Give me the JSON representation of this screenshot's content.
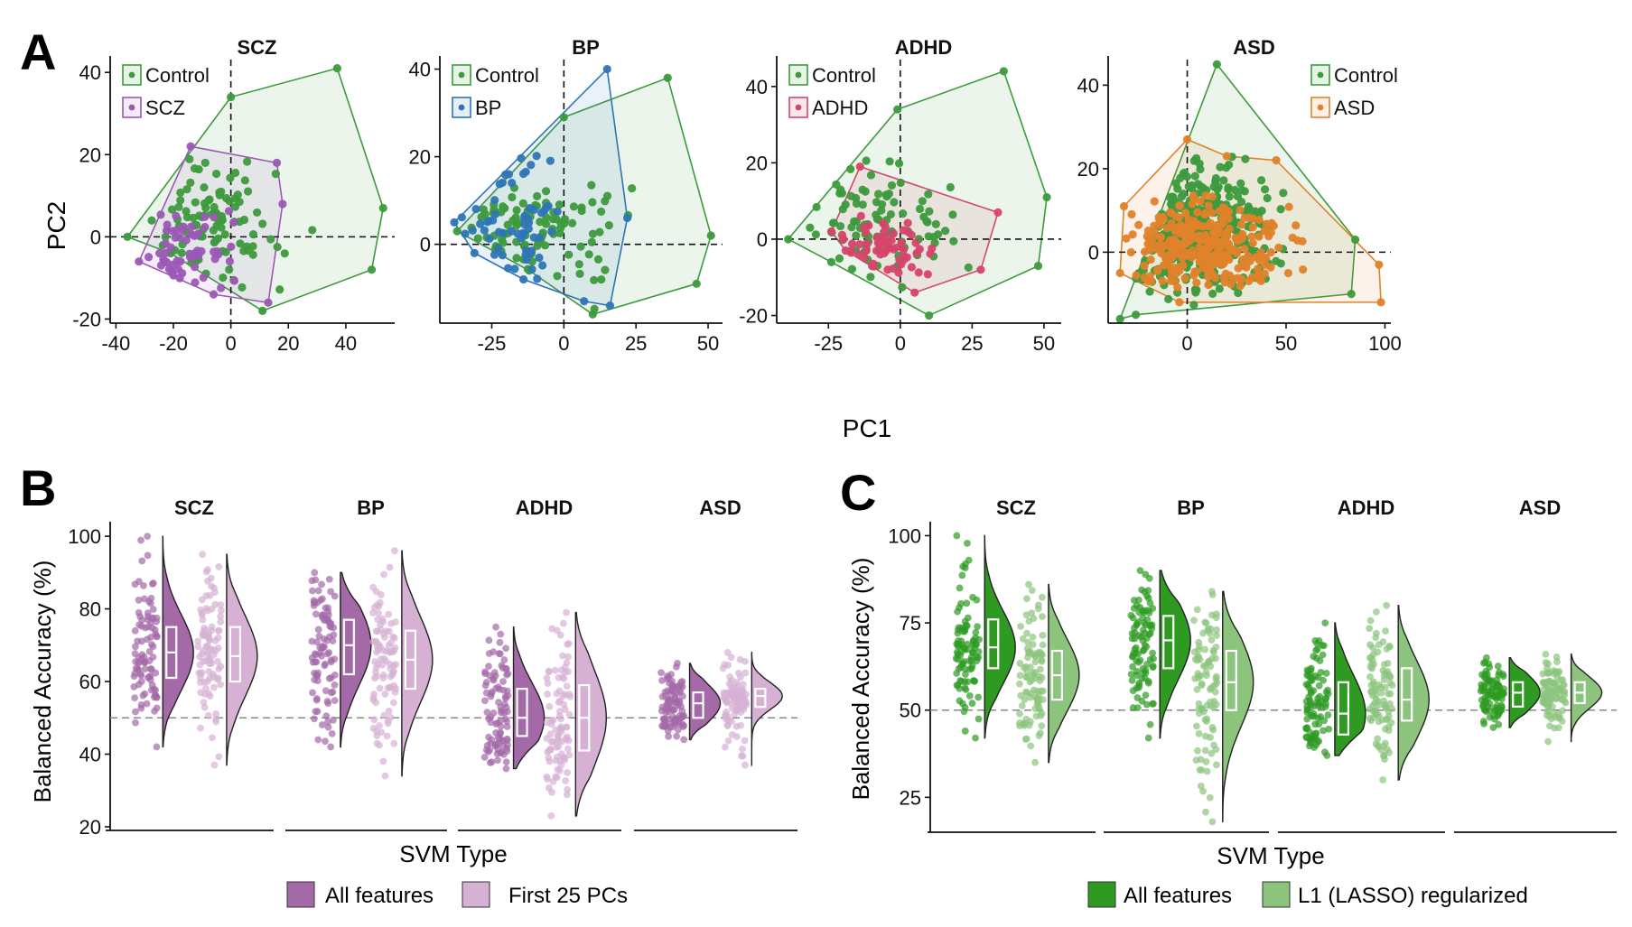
{
  "panel_labels": {
    "a": "A",
    "b": "B",
    "c": "C"
  },
  "colors": {
    "control": "#3d9a3d",
    "scz": "#9b59b6",
    "bp": "#2e75b6",
    "adhd": "#d6456a",
    "asd": "#e0822a",
    "b_all": "#a46aa8",
    "b_pc": "#d6b1d4",
    "c_all": "#2e9a22",
    "c_l1": "#8cc47e"
  },
  "panel_a": {
    "xlabel": "PC1",
    "ylabel": "PC2",
    "legend_control": "Control"
  },
  "panel_b": {
    "ylabel": "Balanced Accuracy (%)",
    "xlabel": "SVM Type",
    "legend": [
      "All features",
      "First 25 PCs"
    ]
  },
  "panel_c": {
    "ylabel": "Balanced Accuracy (%)",
    "xlabel": "SVM Type",
    "legend": [
      "All features",
      "L1 (LASSO) regularized"
    ]
  },
  "chart_data": [
    {
      "type": "scatter",
      "panel": "A",
      "title": "SCZ",
      "xlabel": "PC1",
      "ylabel": "PC2",
      "xlim": [
        -42,
        57
      ],
      "ylim": [
        -21,
        44
      ],
      "xticks": [
        -40,
        -20,
        0,
        20,
        40
      ],
      "yticks": [
        -20,
        0,
        20,
        40
      ],
      "reference_lines": {
        "x": 0,
        "y": 0
      },
      "legend": [
        "Control",
        "SCZ"
      ],
      "legend_position": "top-left",
      "series": [
        {
          "name": "Control",
          "hull": [
            [
              -36,
              0
            ],
            [
              0,
              34
            ],
            [
              37,
              41
            ],
            [
              53,
              7
            ],
            [
              49,
              -8
            ],
            [
              11,
              -18
            ],
            [
              -21,
              -4
            ]
          ]
        },
        {
          "name": "SCZ",
          "hull": [
            [
              -32,
              -6
            ],
            [
              -14,
              22
            ],
            [
              16,
              18
            ],
            [
              18,
              8
            ],
            [
              13,
              -16
            ],
            [
              -6,
              -14
            ]
          ]
        }
      ]
    },
    {
      "type": "scatter",
      "panel": "A",
      "title": "BP",
      "xlabel": "PC1",
      "ylabel": "PC2",
      "xlim": [
        -43,
        55
      ],
      "ylim": [
        -18,
        43
      ],
      "xticks": [
        -25,
        0,
        25,
        50
      ],
      "yticks": [
        0,
        20,
        40
      ],
      "reference_lines": {
        "x": 0,
        "y": 0
      },
      "legend": [
        "Control",
        "BP"
      ],
      "legend_position": "top-left",
      "series": [
        {
          "name": "Control",
          "hull": [
            [
              -37,
              3
            ],
            [
              0,
              29
            ],
            [
              36,
              38
            ],
            [
              51,
              2
            ],
            [
              46,
              -9
            ],
            [
              10,
              -16
            ],
            [
              -12,
              -6
            ]
          ]
        },
        {
          "name": "BP",
          "hull": [
            [
              -38,
              5
            ],
            [
              15,
              40
            ],
            [
              22,
              6
            ],
            [
              16,
              -14
            ],
            [
              7,
              -13
            ],
            [
              -14,
              -8
            ],
            [
              -31,
              -2
            ]
          ]
        }
      ]
    },
    {
      "type": "scatter",
      "panel": "A",
      "title": "ADHD",
      "xlabel": "PC1",
      "ylabel": "PC2",
      "xlim": [
        -43,
        56
      ],
      "ylim": [
        -22,
        48
      ],
      "xticks": [
        -25,
        0,
        25,
        50
      ],
      "yticks": [
        -20,
        0,
        20,
        40
      ],
      "reference_lines": {
        "x": 0,
        "y": 0
      },
      "legend": [
        "Control",
        "ADHD"
      ],
      "legend_position": "top-left",
      "series": [
        {
          "name": "Control",
          "hull": [
            [
              -39,
              0
            ],
            [
              -1,
              34
            ],
            [
              36,
              44
            ],
            [
              51,
              11
            ],
            [
              48,
              -7
            ],
            [
              10,
              -20
            ],
            [
              -24,
              -6
            ]
          ]
        },
        {
          "name": "ADHD",
          "hull": [
            [
              -24,
              2
            ],
            [
              -14,
              19
            ],
            [
              34,
              7
            ],
            [
              28,
              -8
            ],
            [
              5,
              -14
            ],
            [
              -19,
              -3
            ]
          ]
        }
      ]
    },
    {
      "type": "scatter",
      "panel": "A",
      "title": "ASD",
      "xlabel": "PC1",
      "ylabel": "PC2",
      "xlim": [
        -40,
        103
      ],
      "ylim": [
        -17,
        47
      ],
      "xticks": [
        0,
        50,
        100
      ],
      "yticks": [
        0,
        20,
        40
      ],
      "reference_lines": {
        "x": 0,
        "y": 0
      },
      "legend": [
        "Control",
        "ASD"
      ],
      "legend_position": "top-right",
      "series": [
        {
          "name": "Control",
          "hull": [
            [
              -34,
              -16
            ],
            [
              15,
              45
            ],
            [
              85,
              3
            ],
            [
              83,
              -10
            ],
            [
              -26,
              -15
            ]
          ]
        },
        {
          "name": "ASD",
          "hull": [
            [
              -34,
              -5
            ],
            [
              -32,
              11
            ],
            [
              0,
              27
            ],
            [
              20,
              23
            ],
            [
              45,
              22
            ],
            [
              97,
              -3
            ],
            [
              98,
              -12
            ],
            [
              -4,
              -12
            ]
          ]
        }
      ]
    },
    {
      "type": "violin",
      "panel": "B",
      "ylabel": "Balanced Accuracy (%)",
      "xlabel": "SVM Type",
      "ylim": [
        19,
        104
      ],
      "yticks": [
        20,
        40,
        60,
        80,
        100
      ],
      "reference_line": 50,
      "categories": [
        "SCZ",
        "BP",
        "ADHD",
        "ASD"
      ],
      "series": [
        {
          "name": "All features",
          "min": [
            42,
            42,
            36,
            44
          ],
          "q1": [
            61,
            62,
            45,
            50
          ],
          "median": [
            68,
            70,
            50,
            54
          ],
          "q3": [
            75,
            77,
            58,
            57
          ],
          "max": [
            100,
            90,
            75,
            65
          ]
        },
        {
          "name": "First 25 PCs",
          "min": [
            37,
            34,
            23,
            37
          ],
          "q1": [
            60,
            58,
            41,
            53
          ],
          "median": [
            67,
            66,
            50,
            56
          ],
          "q3": [
            75,
            74,
            59,
            58
          ],
          "max": [
            95,
            96,
            79,
            68
          ]
        }
      ]
    },
    {
      "type": "violin",
      "panel": "C",
      "ylabel": "Balanced Accuracy (%)",
      "xlabel": "SVM Type",
      "ylim": [
        15,
        104
      ],
      "yticks": [
        25,
        50,
        75,
        100
      ],
      "reference_line": 50,
      "categories": [
        "SCZ",
        "BP",
        "ADHD",
        "ASD"
      ],
      "series": [
        {
          "name": "All features",
          "min": [
            42,
            42,
            37,
            45
          ],
          "q1": [
            62,
            62,
            43,
            51
          ],
          "median": [
            68,
            70,
            49,
            55
          ],
          "q3": [
            76,
            77,
            58,
            58
          ],
          "max": [
            100,
            90,
            75,
            65
          ]
        },
        {
          "name": "L1 (LASSO) regularized",
          "min": [
            35,
            18,
            30,
            41
          ],
          "q1": [
            53,
            50,
            47,
            52
          ],
          "median": [
            60,
            58,
            53,
            55
          ],
          "q3": [
            67,
            67,
            62,
            58
          ],
          "max": [
            86,
            84,
            80,
            66
          ]
        }
      ]
    }
  ]
}
